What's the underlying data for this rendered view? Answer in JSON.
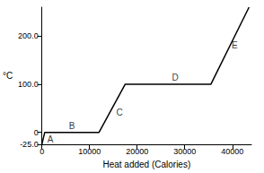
{
  "chart_data": {
    "type": "line",
    "x_label": "Heat added (Calories)",
    "y_label": "°C",
    "x": [
      0,
      600,
      12000,
      17500,
      35500,
      43500
    ],
    "values": [
      -25,
      0,
      0,
      100,
      100,
      260
    ],
    "color": "#000000",
    "xlim": [
      0,
      44000
    ],
    "xticks": [
      0,
      10000,
      20000,
      30000,
      40000
    ],
    "ylim": [
      -25,
      260
    ],
    "yticks": [
      {
        "value": -25,
        "label": "-25.0"
      },
      0,
      {
        "value": 100,
        "label": "100.0"
      },
      {
        "value": 200,
        "label": "200.0"
      }
    ],
    "grid": false,
    "annotations": [
      {
        "text": "A",
        "x": 1800,
        "y": -14
      },
      {
        "text": "B",
        "x": 6300,
        "y": 14
      },
      {
        "text": "C",
        "x": 16300,
        "y": 42
      },
      {
        "text": "D",
        "x": 28000,
        "y": 114
      },
      {
        "text": "E",
        "x": 40500,
        "y": 180
      }
    ]
  }
}
